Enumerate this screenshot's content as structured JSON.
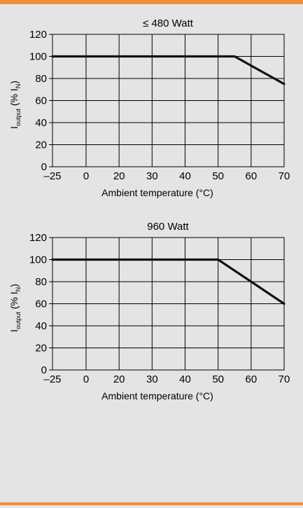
{
  "chart_data": [
    {
      "type": "line",
      "title": "≤ 480 Watt",
      "xlabel": "Ambient temperature (°C)",
      "ylabel": {
        "main": "I",
        "sub": "output",
        "mid": " (% I",
        "sub2": "N",
        "end": ")"
      },
      "xticks": [
        -25,
        0,
        20,
        30,
        40,
        50,
        60,
        70
      ],
      "xtick_labels": [
        "–25",
        "0",
        "20",
        "30",
        "40",
        "50",
        "60",
        "70"
      ],
      "yticks": [
        0,
        20,
        40,
        60,
        80,
        100,
        120
      ],
      "ylim": [
        0,
        120
      ],
      "grid": true,
      "series": [
        {
          "x": [
            -25,
            55,
            70
          ],
          "y": [
            100,
            100,
            75
          ]
        }
      ]
    },
    {
      "type": "line",
      "title": "960 Watt",
      "xlabel": "Ambient temperature (°C)",
      "ylabel": {
        "main": "I",
        "sub": "output",
        "mid": " (% I",
        "sub2": "N",
        "end": ")"
      },
      "xticks": [
        -25,
        0,
        20,
        30,
        40,
        50,
        60,
        70
      ],
      "xtick_labels": [
        "–25",
        "0",
        "20",
        "30",
        "40",
        "50",
        "60",
        "70"
      ],
      "yticks": [
        0,
        20,
        40,
        60,
        80,
        100,
        120
      ],
      "ylim": [
        0,
        120
      ],
      "grid": true,
      "series": [
        {
          "x": [
            -25,
            50,
            70
          ],
          "y": [
            100,
            100,
            60
          ]
        }
      ]
    }
  ]
}
